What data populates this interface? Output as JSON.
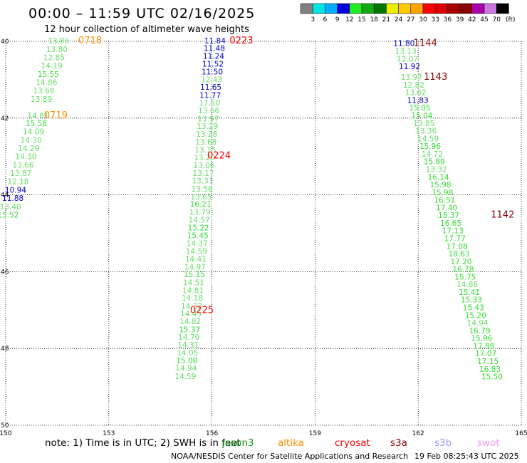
{
  "title": "00:00 – 11:59 UTC 02/16/2025",
  "subtitle": "12 hour collection of altimeter wave heights",
  "colorbar": {
    "unit": "(ft)",
    "labels": [
      "3",
      "6",
      "9",
      "12",
      "15",
      "18",
      "21",
      "24",
      "27",
      "30",
      "33",
      "36",
      "39",
      "42",
      "45",
      "70"
    ],
    "colors": [
      "#808080",
      "#00e5e5",
      "#00aaff",
      "#0000dd",
      "#22ee22",
      "#11aa11",
      "#007700",
      "#eeee00",
      "#ffcc00",
      "#ffa500",
      "#ff0000",
      "#dd0000",
      "#aa0000",
      "#880000",
      "#aa00aa",
      "#cc77dd",
      "#000000"
    ]
  },
  "axes": {
    "lon_ticks": [
      "150",
      "153",
      "156",
      "159",
      "162",
      "165"
    ],
    "lat_ticks": [
      "40",
      "42",
      "44",
      "46",
      "48",
      "50"
    ]
  },
  "track_colors": {
    "g": "#33dd33",
    "l": "#66dd66",
    "b": "#0000cc"
  },
  "tracks": [
    {
      "pass_labels": [
        {
          "text": "0718",
          "lon": 152.8,
          "lat": 39.98,
          "color": "#ff8c00"
        },
        {
          "text": "0719",
          "lon": 151.8,
          "lat": 41.93,
          "color": "#ff8c00"
        }
      ],
      "obs": [
        {
          "lon": 151.85,
          "lat": 39.98,
          "v": "13.86",
          "c": "l"
        },
        {
          "lon": 151.8,
          "lat": 40.2,
          "v": "13.80",
          "c": "l"
        },
        {
          "lon": 151.72,
          "lat": 40.42,
          "v": "12.85",
          "c": "l"
        },
        {
          "lon": 151.65,
          "lat": 40.63,
          "v": "14.19",
          "c": "l"
        },
        {
          "lon": 151.55,
          "lat": 40.85,
          "v": "15.55",
          "c": "g"
        },
        {
          "lon": 151.5,
          "lat": 41.07,
          "v": "14.86",
          "c": "l"
        },
        {
          "lon": 151.42,
          "lat": 41.28,
          "v": "13.68",
          "c": "l"
        },
        {
          "lon": 151.35,
          "lat": 41.5,
          "v": "13.89",
          "c": "l"
        },
        {
          "lon": 151.25,
          "lat": 41.93,
          "v": "14.81",
          "c": "l"
        },
        {
          "lon": 151.2,
          "lat": 42.13,
          "v": "15.58",
          "c": "g"
        },
        {
          "lon": 151.12,
          "lat": 42.35,
          "v": "14.09",
          "c": "l"
        },
        {
          "lon": 151.05,
          "lat": 42.57,
          "v": "14.30",
          "c": "l"
        },
        {
          "lon": 150.98,
          "lat": 42.78,
          "v": "14.29",
          "c": "l"
        },
        {
          "lon": 150.9,
          "lat": 43.0,
          "v": "14.30",
          "c": "l"
        },
        {
          "lon": 150.82,
          "lat": 43.22,
          "v": "13.66",
          "c": "l"
        },
        {
          "lon": 150.75,
          "lat": 43.43,
          "v": "13.87",
          "c": "l"
        },
        {
          "lon": 150.67,
          "lat": 43.65,
          "v": "12.18",
          "c": "l"
        },
        {
          "lon": 150.6,
          "lat": 43.87,
          "v": "10.94",
          "c": "b"
        },
        {
          "lon": 150.52,
          "lat": 44.08,
          "v": "11.88",
          "c": "b"
        },
        {
          "lon": 150.45,
          "lat": 44.3,
          "v": "13.40",
          "c": "l"
        },
        {
          "lon": 150.38,
          "lat": 44.52,
          "v": "15.52",
          "c": "g"
        }
      ]
    },
    {
      "pass_labels": [
        {
          "text": "0223",
          "lon": 157.2,
          "lat": 39.98,
          "color": "#ff0000"
        },
        {
          "text": "0224",
          "lon": 156.55,
          "lat": 42.98,
          "color": "#ff0000"
        },
        {
          "text": "0225",
          "lon": 156.05,
          "lat": 47.0,
          "color": "#ff0000"
        }
      ],
      "obs": [
        {
          "lon": 156.4,
          "lat": 39.98,
          "v": "11.84",
          "c": "b"
        },
        {
          "lon": 156.38,
          "lat": 40.18,
          "v": "11.48",
          "c": "b"
        },
        {
          "lon": 156.36,
          "lat": 40.38,
          "v": "11.24",
          "c": "b"
        },
        {
          "lon": 156.34,
          "lat": 40.58,
          "v": "11.52",
          "c": "b"
        },
        {
          "lon": 156.32,
          "lat": 40.79,
          "v": "11.50",
          "c": "b"
        },
        {
          "lon": 156.3,
          "lat": 40.99,
          "v": "12.43",
          "c": "l"
        },
        {
          "lon": 156.28,
          "lat": 41.19,
          "v": "11.65",
          "c": "b"
        },
        {
          "lon": 156.26,
          "lat": 41.4,
          "v": "11.77",
          "c": "b"
        },
        {
          "lon": 156.24,
          "lat": 41.6,
          "v": "17.50",
          "c": "l"
        },
        {
          "lon": 156.22,
          "lat": 41.8,
          "v": "13.66",
          "c": "l"
        },
        {
          "lon": 156.2,
          "lat": 42.01,
          "v": "13.97",
          "c": "l"
        },
        {
          "lon": 156.18,
          "lat": 42.21,
          "v": "13.29",
          "c": "l"
        },
        {
          "lon": 156.16,
          "lat": 42.41,
          "v": "13.28",
          "c": "l"
        },
        {
          "lon": 156.14,
          "lat": 42.62,
          "v": "13.68",
          "c": "l"
        },
        {
          "lon": 156.12,
          "lat": 42.82,
          "v": "13.15",
          "c": "l"
        },
        {
          "lon": 156.1,
          "lat": 43.02,
          "v": "13.20",
          "c": "l"
        },
        {
          "lon": 156.08,
          "lat": 43.23,
          "v": "13.06",
          "c": "l"
        },
        {
          "lon": 156.06,
          "lat": 43.43,
          "v": "13.17",
          "c": "l"
        },
        {
          "lon": 156.04,
          "lat": 43.63,
          "v": "13.31",
          "c": "l"
        },
        {
          "lon": 156.02,
          "lat": 43.84,
          "v": "13.58",
          "c": "l"
        },
        {
          "lon": 156.0,
          "lat": 44.04,
          "v": "13.65",
          "c": "l"
        },
        {
          "lon": 155.98,
          "lat": 44.24,
          "v": "16.21",
          "c": "g"
        },
        {
          "lon": 155.96,
          "lat": 44.44,
          "v": "13.79",
          "c": "l"
        },
        {
          "lon": 155.94,
          "lat": 44.65,
          "v": "14.57",
          "c": "l"
        },
        {
          "lon": 155.92,
          "lat": 44.85,
          "v": "15.22",
          "c": "g"
        },
        {
          "lon": 155.9,
          "lat": 45.06,
          "v": "15.45",
          "c": "g"
        },
        {
          "lon": 155.88,
          "lat": 45.26,
          "v": "14.37",
          "c": "l"
        },
        {
          "lon": 155.86,
          "lat": 45.46,
          "v": "14.59",
          "c": "l"
        },
        {
          "lon": 155.84,
          "lat": 45.67,
          "v": "14.41",
          "c": "l"
        },
        {
          "lon": 155.82,
          "lat": 45.87,
          "v": "14.97",
          "c": "l"
        },
        {
          "lon": 155.8,
          "lat": 46.07,
          "v": "15.15",
          "c": "g"
        },
        {
          "lon": 155.78,
          "lat": 46.28,
          "v": "14.51",
          "c": "l"
        },
        {
          "lon": 155.76,
          "lat": 46.48,
          "v": "14.81",
          "c": "l"
        },
        {
          "lon": 155.74,
          "lat": 46.68,
          "v": "14.18",
          "c": "l"
        },
        {
          "lon": 155.72,
          "lat": 46.89,
          "v": "14.32",
          "c": "l"
        },
        {
          "lon": 155.7,
          "lat": 47.09,
          "v": "14.45",
          "c": "l"
        },
        {
          "lon": 155.68,
          "lat": 47.29,
          "v": "14.82",
          "c": "l"
        },
        {
          "lon": 155.66,
          "lat": 47.5,
          "v": "15.37",
          "c": "g"
        },
        {
          "lon": 155.64,
          "lat": 47.7,
          "v": "14.70",
          "c": "l"
        },
        {
          "lon": 155.62,
          "lat": 47.9,
          "v": "14.31",
          "c": "l"
        },
        {
          "lon": 155.6,
          "lat": 48.11,
          "v": "14.05",
          "c": "l"
        },
        {
          "lon": 155.58,
          "lat": 48.31,
          "v": "15.08",
          "c": "g"
        },
        {
          "lon": 155.56,
          "lat": 48.51,
          "v": "14.94",
          "c": "l"
        },
        {
          "lon": 155.54,
          "lat": 48.72,
          "v": "14.59",
          "c": "l"
        }
      ]
    },
    {
      "pass_labels": [
        {
          "text": "1144",
          "lon": 162.55,
          "lat": 40.05,
          "color": "#880000"
        },
        {
          "text": "1143",
          "lon": 162.85,
          "lat": 40.93,
          "color": "#880000"
        },
        {
          "text": "1142",
          "lon": 164.8,
          "lat": 44.52,
          "color": "#880000"
        }
      ],
      "obs": [
        {
          "lon": 161.9,
          "lat": 40.05,
          "v": "11.80",
          "c": "b"
        },
        {
          "lon": 161.95,
          "lat": 40.25,
          "v": "13.13",
          "c": "l"
        },
        {
          "lon": 162.0,
          "lat": 40.45,
          "v": "12.07",
          "c": "l"
        },
        {
          "lon": 162.06,
          "lat": 40.65,
          "v": "11.92",
          "c": "b"
        },
        {
          "lon": 162.12,
          "lat": 40.93,
          "v": "13.97",
          "c": "l"
        },
        {
          "lon": 162.18,
          "lat": 41.13,
          "v": "12.82",
          "c": "l"
        },
        {
          "lon": 162.24,
          "lat": 41.33,
          "v": "13.62",
          "c": "l"
        },
        {
          "lon": 162.3,
          "lat": 41.53,
          "v": "11.83",
          "c": "b"
        },
        {
          "lon": 162.36,
          "lat": 41.73,
          "v": "15.05",
          "c": "g"
        },
        {
          "lon": 162.42,
          "lat": 41.93,
          "v": "15.04",
          "c": "g"
        },
        {
          "lon": 162.48,
          "lat": 42.13,
          "v": "13.85",
          "c": "l"
        },
        {
          "lon": 162.54,
          "lat": 42.33,
          "v": "13.36",
          "c": "l"
        },
        {
          "lon": 162.6,
          "lat": 42.53,
          "v": "14.59",
          "c": "l"
        },
        {
          "lon": 162.66,
          "lat": 42.73,
          "v": "15.96",
          "c": "g"
        },
        {
          "lon": 162.72,
          "lat": 42.93,
          "v": "14.72",
          "c": "l"
        },
        {
          "lon": 162.78,
          "lat": 43.13,
          "v": "15.89",
          "c": "g"
        },
        {
          "lon": 162.84,
          "lat": 43.33,
          "v": "13.32",
          "c": "l"
        },
        {
          "lon": 162.9,
          "lat": 43.53,
          "v": "16.14",
          "c": "g"
        },
        {
          "lon": 162.96,
          "lat": 43.73,
          "v": "15.98",
          "c": "g"
        },
        {
          "lon": 163.02,
          "lat": 43.93,
          "v": "15.98",
          "c": "g"
        },
        {
          "lon": 163.08,
          "lat": 44.13,
          "v": "16.51",
          "c": "g"
        },
        {
          "lon": 163.14,
          "lat": 44.33,
          "v": "17.40",
          "c": "g"
        },
        {
          "lon": 163.2,
          "lat": 44.53,
          "v": "18.37",
          "c": "g"
        },
        {
          "lon": 163.26,
          "lat": 44.73,
          "v": "16.65",
          "c": "g"
        },
        {
          "lon": 163.32,
          "lat": 44.93,
          "v": "17.13",
          "c": "g"
        },
        {
          "lon": 163.38,
          "lat": 45.13,
          "v": "17.77",
          "c": "g"
        },
        {
          "lon": 163.44,
          "lat": 45.33,
          "v": "17.08",
          "c": "g"
        },
        {
          "lon": 163.5,
          "lat": 45.53,
          "v": "18.63",
          "c": "g"
        },
        {
          "lon": 163.56,
          "lat": 45.73,
          "v": "17.20",
          "c": "g"
        },
        {
          "lon": 163.62,
          "lat": 45.93,
          "v": "16.78",
          "c": "g"
        },
        {
          "lon": 163.68,
          "lat": 46.13,
          "v": "15.75",
          "c": "g"
        },
        {
          "lon": 163.74,
          "lat": 46.33,
          "v": "14.86",
          "c": "l"
        },
        {
          "lon": 163.8,
          "lat": 46.53,
          "v": "15.41",
          "c": "g"
        },
        {
          "lon": 163.86,
          "lat": 46.73,
          "v": "15.33",
          "c": "g"
        },
        {
          "lon": 163.92,
          "lat": 46.93,
          "v": "15.43",
          "c": "g"
        },
        {
          "lon": 163.98,
          "lat": 47.13,
          "v": "15.20",
          "c": "g"
        },
        {
          "lon": 164.04,
          "lat": 47.33,
          "v": "14.94",
          "c": "l"
        },
        {
          "lon": 164.1,
          "lat": 47.53,
          "v": "16.79",
          "c": "g"
        },
        {
          "lon": 164.16,
          "lat": 47.73,
          "v": "15.96",
          "c": "g"
        },
        {
          "lon": 164.22,
          "lat": 47.93,
          "v": "17.88",
          "c": "g"
        },
        {
          "lon": 164.28,
          "lat": 48.13,
          "v": "17.07",
          "c": "g"
        },
        {
          "lon": 164.34,
          "lat": 48.33,
          "v": "17.15",
          "c": "g"
        },
        {
          "lon": 164.4,
          "lat": 48.53,
          "v": "16.83",
          "c": "g"
        },
        {
          "lon": 164.46,
          "lat": 48.73,
          "v": "15.50",
          "c": "g"
        }
      ]
    }
  ],
  "note": "note:  1) Time is in UTC; 2) SWH is in feet",
  "missions": [
    {
      "name": "jason3",
      "color": "#119911"
    },
    {
      "name": "altika",
      "color": "#ff8c00"
    },
    {
      "name": "cryosat",
      "color": "#ff0000"
    },
    {
      "name": "s3a",
      "color": "#880000"
    },
    {
      "name": "s3b",
      "color": "#9999ee"
    },
    {
      "name": "swot",
      "color": "#ee99ee"
    }
  ],
  "credit": "NOAA/NESDIS Center for Satellite Applications and Research",
  "generated": "19 Feb 08:25:43 UTC 2025"
}
